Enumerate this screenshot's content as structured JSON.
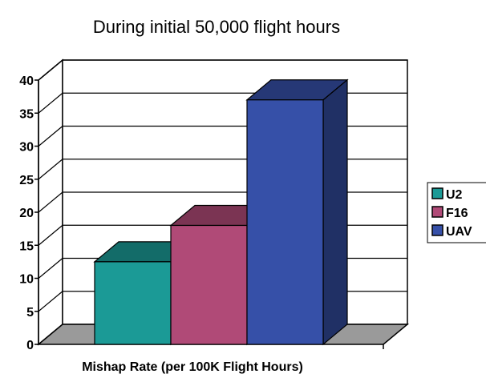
{
  "chart_data": {
    "type": "bar",
    "title": "During initial 50,000 flight hours",
    "xlabel": "Mishap Rate (per 100K Flight Hours)",
    "ylabel": "",
    "ylim": [
      0,
      40
    ],
    "yticks": [
      "0",
      "5",
      "10",
      "15",
      "20",
      "25",
      "30",
      "35",
      "40"
    ],
    "grid": true,
    "legend_position": "right",
    "series": [
      {
        "name": "U2",
        "value": 12.5,
        "color": "#1b9a96"
      },
      {
        "name": "F16",
        "value": 18,
        "color": "#b04a77"
      },
      {
        "name": "UAV",
        "value": 37,
        "color": "#3650a8"
      }
    ]
  }
}
